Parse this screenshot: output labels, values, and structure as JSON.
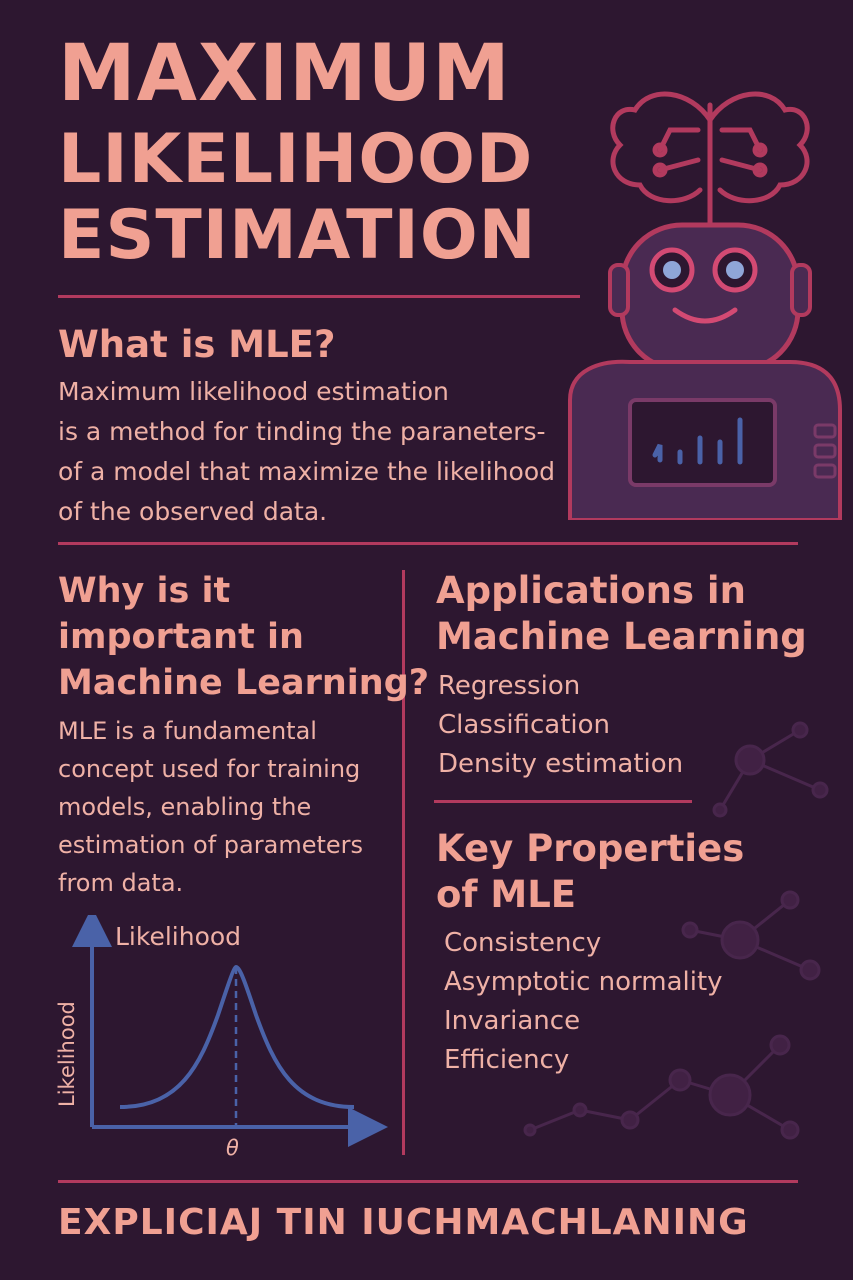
{
  "title": {
    "line1": "MAXIMUM",
    "line2": "LIKELIHOOD",
    "line3": "ESTIMATION"
  },
  "what_is": {
    "heading": "What is MLE?",
    "lines": [
      "Maximum likelihood estimation",
      "is a method for tinding the paraneters-",
      "of a model that maximize the likelihood",
      "of the observed data."
    ]
  },
  "why_important": {
    "heading_lines": [
      "Why is it",
      "important in",
      "Machine Learning?"
    ],
    "lines": [
      "MLE is a fundamental",
      "concept used for training",
      "models, enabling the",
      "estimation of parameters",
      "from data."
    ]
  },
  "applications": {
    "heading_lines": [
      "Applications in",
      "Machine Learning"
    ],
    "items": [
      "Regression",
      "Classification",
      "Density estimation"
    ]
  },
  "key_properties": {
    "heading_lines": [
      "Key Properties",
      "of MLE"
    ],
    "items": [
      "Consistency",
      "Asymptotic normality",
      "Invariance",
      "Efficiency"
    ]
  },
  "plot": {
    "title": "Likelihood",
    "ylabel": "Likelihood",
    "xlabel": "θ"
  },
  "footer": "EXPLICIAJ TIN IUCHMACHLANING",
  "colors": {
    "background": "#2d1730",
    "accent_text": "#f0a092",
    "rule": "#b23a5e",
    "plot_line": "#4a62a8",
    "robot_body": "#4a2a52"
  },
  "icons": [
    "brain-circuit-icon",
    "robot-icon",
    "bar-chart-icon",
    "network-nodes-icon"
  ]
}
